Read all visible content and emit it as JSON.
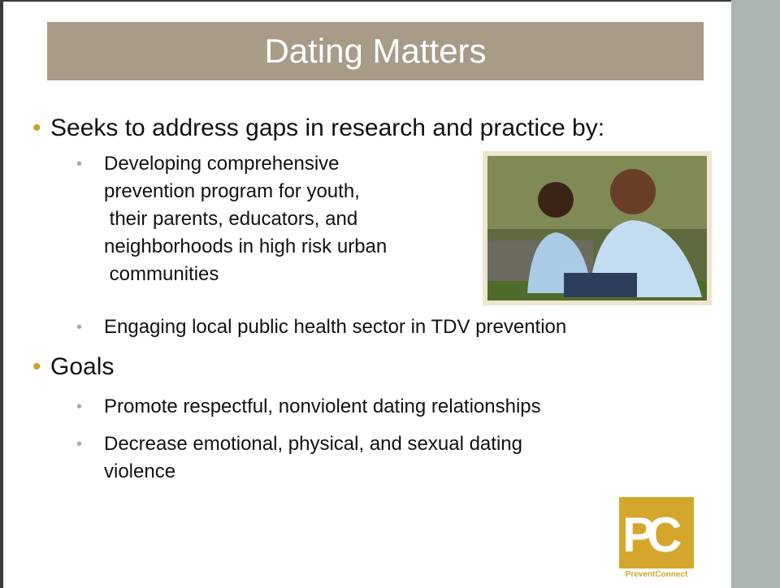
{
  "slide": {
    "title": "Dating Matters",
    "bullets": [
      {
        "text": "Seeks to address gaps in research and practice by:",
        "items": [
          {
            "lines": [
              "Developing comprehensive",
              "prevention program for youth,",
              " their parents, educators, and",
              "neighborhoods in high risk urban",
              " communities"
            ]
          },
          {
            "lines": [
              "Engaging local public health sector in TDV prevention"
            ]
          }
        ]
      },
      {
        "text": "Goals",
        "items": [
          {
            "lines": [
              "Promote respectful, nonviolent dating relationships"
            ]
          },
          {
            "lines": [
              "Decrease emotional, physical, and sexual dating",
              "violence"
            ]
          }
        ]
      }
    ]
  },
  "logo": {
    "letters": "PC",
    "name": "PreventConnect"
  }
}
